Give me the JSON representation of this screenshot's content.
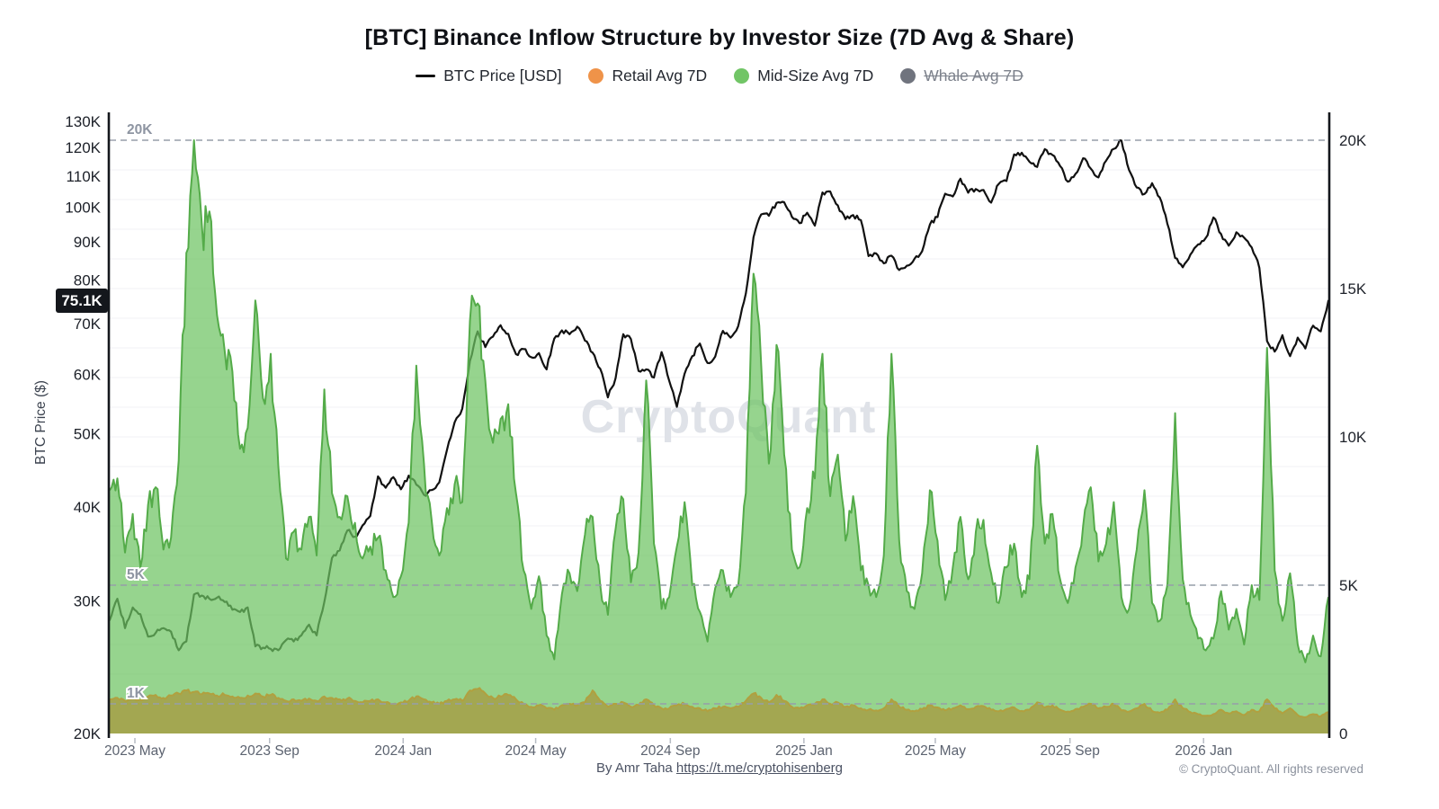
{
  "title": "[BTC] Binance Inflow Structure by Investor Size (7D Avg & Share)",
  "legend": {
    "items": [
      {
        "label": "BTC Price [USD]",
        "color": "#111111",
        "marker": "line",
        "disabled": false
      },
      {
        "label": "Retail Avg 7D",
        "color": "#ef9349",
        "marker": "dot",
        "disabled": false
      },
      {
        "label": "Mid-Size Avg 7D",
        "color": "#71c566",
        "marker": "dot",
        "disabled": false
      },
      {
        "label": "Whale Avg 7D",
        "color": "#70747e",
        "marker": "dot",
        "disabled": true
      }
    ]
  },
  "watermark": "CryptoQuant",
  "price_badge": {
    "label": "75.1K",
    "value": 75.1
  },
  "y_left": {
    "title": "BTC Price ($)",
    "scale": "log",
    "unit": "USD thousands",
    "ticks": [
      {
        "v": 130,
        "label": "130K"
      },
      {
        "v": 120,
        "label": "120K"
      },
      {
        "v": 110,
        "label": "110K"
      },
      {
        "v": 100,
        "label": "100K"
      },
      {
        "v": 90,
        "label": "90K"
      },
      {
        "v": 80,
        "label": "80K"
      },
      {
        "v": 70,
        "label": "70K"
      },
      {
        "v": 60,
        "label": "60K"
      },
      {
        "v": 50,
        "label": "50K"
      },
      {
        "v": 40,
        "label": "40K"
      },
      {
        "v": 30,
        "label": "30K"
      },
      {
        "v": 20,
        "label": "20K"
      }
    ]
  },
  "y_right": {
    "scale": "linear",
    "unit": "BTC thousands",
    "ticks": [
      {
        "v": 20,
        "label": "20K"
      },
      {
        "v": 15,
        "label": "15K"
      },
      {
        "v": 10,
        "label": "10K"
      },
      {
        "v": 5,
        "label": "5K"
      },
      {
        "v": 0,
        "label": "0"
      }
    ],
    "dashed_levels": [
      {
        "v": 20,
        "label": "20K"
      },
      {
        "v": 5,
        "label": "5K"
      },
      {
        "v": 1,
        "label": "1K"
      }
    ]
  },
  "x_axis": {
    "ticks": [
      {
        "label": "2023 May",
        "year": 2023,
        "month": 5
      },
      {
        "label": "2023 Sep",
        "year": 2023,
        "month": 9
      },
      {
        "label": "2024 Jan",
        "year": 2024,
        "month": 1
      },
      {
        "label": "2024 May",
        "year": 2024,
        "month": 5
      },
      {
        "label": "2024 Sep",
        "year": 2024,
        "month": 9
      },
      {
        "label": "2025 Jan",
        "year": 2025,
        "month": 1
      },
      {
        "label": "2025 May",
        "year": 2025,
        "month": 5
      },
      {
        "label": "2025 Sep",
        "year": 2025,
        "month": 9
      },
      {
        "label": "2026 Jan",
        "year": 2026,
        "month": 1
      }
    ]
  },
  "footer": {
    "by_text": "By Amr Taha ",
    "link_text": "https://t.me/cryptohisenberg",
    "copyright": "© CryptoQuant. All rights reserved"
  },
  "chart_data": {
    "type": "mixed",
    "x_start_date": "2023-04-08",
    "x_end_date": "2026-04-25",
    "interval_days": 7,
    "left_axis_range_thousands": [
      20,
      133
    ],
    "right_axis_range_thousands": [
      0,
      20.4
    ],
    "grid": "faint horizontal every 1K on right axis; dashed at 20K, 5K, 1K",
    "legend_position": "top-center",
    "series": [
      {
        "name": "BTC Price [USD]",
        "type": "line",
        "axis": "left",
        "color": "#111111",
        "values": [
          28.3,
          30.2,
          27.6,
          29.4,
          28.8,
          26.9,
          27.2,
          27.6,
          27.3,
          25.8,
          26.5,
          30.6,
          30.5,
          30.2,
          30.3,
          29.9,
          29.2,
          29.0,
          29.4,
          26.1,
          26.0,
          25.9,
          25.8,
          26.6,
          26.5,
          27.0,
          27.9,
          27.0,
          29.9,
          34.2,
          35.0,
          37.2,
          36.5,
          37.8,
          38.9,
          43.9,
          42.4,
          43.8,
          42.2,
          44.0,
          42.8,
          41.5,
          42.1,
          43.1,
          47.6,
          51.8,
          54.0,
          62.5,
          68.4,
          65.2,
          67.3,
          69.7,
          67.9,
          63.8,
          64.8,
          63.2,
          64.0,
          60.9,
          66.9,
          68.6,
          67.8,
          69.4,
          66.5,
          64.1,
          61.0,
          55.9,
          59.3,
          67.8,
          66.8,
          60.6,
          60.9,
          59.4,
          64.2,
          58.8,
          54.3,
          60.1,
          63.4,
          65.9,
          62.1,
          63.3,
          68.5,
          67.1,
          69.5,
          76.8,
          91.2,
          97.8,
          97.4,
          101.3,
          101.5,
          97.1,
          95.2,
          98.3,
          94.5,
          104.6,
          104.9,
          100.5,
          96.4,
          97.6,
          96.1,
          86.1,
          86.8,
          84.2,
          86.2,
          82.5,
          83.6,
          85.4,
          87.4,
          94.8,
          97.0,
          104.2,
          103.3,
          109.1,
          104.5,
          105.7,
          105.4,
          101.4,
          107.4,
          108.3,
          117.5,
          118.1,
          114.9,
          113.1,
          119.4,
          117.3,
          113.4,
          108.1,
          110.7,
          116.1,
          112.5,
          109.5,
          115.3,
          119.5,
          122.6,
          112.0,
          106.2,
          104.1,
          107.6,
          103.0,
          95.0,
          85.6,
          83.2,
          86.5,
          89.2,
          91.0,
          96.9,
          92.1,
          88.9,
          92.6,
          91.1,
          88.4,
          83.0,
          66.4,
          64.3,
          67.6,
          63.4,
          67.1,
          64.9,
          69.6,
          68.4,
          75.1
        ]
      },
      {
        "name": "Mid-Size Avg 7D",
        "type": "area",
        "axis": "right",
        "color": "#71c566",
        "values": [
          8.2,
          8.6,
          6.1,
          7.4,
          5.6,
          7.7,
          8.3,
          6.2,
          6.6,
          9.2,
          16.2,
          20.0,
          17.2,
          17.6,
          14.1,
          12.9,
          12.2,
          9.6,
          10.3,
          14.6,
          11.3,
          12.8,
          9.0,
          5.9,
          6.8,
          6.2,
          7.3,
          6.0,
          11.6,
          8.1,
          7.3,
          8.0,
          7.1,
          5.9,
          6.3,
          6.6,
          5.5,
          4.6,
          5.3,
          7.1,
          12.4,
          9.1,
          7.2,
          6.0,
          7.6,
          8.4,
          7.8,
          13.9,
          14.5,
          11.9,
          9.8,
          10.6,
          11.1,
          8.1,
          5.5,
          4.2,
          5.3,
          3.3,
          2.5,
          4.7,
          5.4,
          4.8,
          6.7,
          7.3,
          5.0,
          4.0,
          6.9,
          7.9,
          5.1,
          6.1,
          11.9,
          6.4,
          4.2,
          4.6,
          6.3,
          7.8,
          5.0,
          4.1,
          3.1,
          4.9,
          5.5,
          4.6,
          5.0,
          8.1,
          15.5,
          12.4,
          9.1,
          13.1,
          9.4,
          6.2,
          5.6,
          7.6,
          8.6,
          12.8,
          8.0,
          9.4,
          6.5,
          8.0,
          5.5,
          5.0,
          4.6,
          6.0,
          12.8,
          6.5,
          4.8,
          4.2,
          5.4,
          8.2,
          6.5,
          4.5,
          5.6,
          7.3,
          5.2,
          6.8,
          7.2,
          5.4,
          4.4,
          5.6,
          6.4,
          4.6,
          5.2,
          9.7,
          6.4,
          7.4,
          5.2,
          4.4,
          5.6,
          7.0,
          8.3,
          5.8,
          6.4,
          7.8,
          4.6,
          4.2,
          6.2,
          8.2,
          4.4,
          3.8,
          5.0,
          10.8,
          5.2,
          4.0,
          3.2,
          2.8,
          3.2,
          4.8,
          3.5,
          4.2,
          3.0,
          5.0,
          4.5,
          13.0,
          5.5,
          3.8,
          5.4,
          3.0,
          2.4,
          3.3,
          2.6,
          4.6
        ]
      },
      {
        "name": "Retail Avg 7D",
        "type": "area",
        "axis": "right",
        "color": "#ef9349",
        "values": [
          1.15,
          1.2,
          1.1,
          1.18,
          1.12,
          1.25,
          1.3,
          1.2,
          1.28,
          1.35,
          1.45,
          1.4,
          1.32,
          1.35,
          1.28,
          1.3,
          1.25,
          1.2,
          1.28,
          1.35,
          1.25,
          1.3,
          1.2,
          1.1,
          1.15,
          1.1,
          1.18,
          1.1,
          1.25,
          1.2,
          1.15,
          1.18,
          1.1,
          1.05,
          1.1,
          1.15,
          1.05,
          1.0,
          1.05,
          1.1,
          1.25,
          1.15,
          1.05,
          1.0,
          1.1,
          1.15,
          1.1,
          1.45,
          1.5,
          1.35,
          1.2,
          1.25,
          1.3,
          1.15,
          1.0,
          0.9,
          0.95,
          0.85,
          0.8,
          0.95,
          1.0,
          0.95,
          1.05,
          1.45,
          1.1,
          0.9,
          1.0,
          1.05,
          0.9,
          0.95,
          1.15,
          0.95,
          0.85,
          0.85,
          0.95,
          1.0,
          0.9,
          0.85,
          0.75,
          0.85,
          0.9,
          0.85,
          0.9,
          1.1,
          1.35,
          1.2,
          1.05,
          1.3,
          1.1,
          0.9,
          0.85,
          0.95,
          1.0,
          1.15,
          1.0,
          1.05,
          0.9,
          0.95,
          0.85,
          0.8,
          0.78,
          0.85,
          1.15,
          0.9,
          0.8,
          0.75,
          0.82,
          0.95,
          0.88,
          0.78,
          0.85,
          0.95,
          0.82,
          0.9,
          0.92,
          0.8,
          0.75,
          0.82,
          0.88,
          0.76,
          0.8,
          1.05,
          0.88,
          0.95,
          0.8,
          0.74,
          0.82,
          0.9,
          1.0,
          0.85,
          0.9,
          1.0,
          0.78,
          0.74,
          0.85,
          1.0,
          0.76,
          0.7,
          0.8,
          1.15,
          0.85,
          0.72,
          0.65,
          0.6,
          0.65,
          0.8,
          0.68,
          0.75,
          0.62,
          0.8,
          0.75,
          1.15,
          0.85,
          0.68,
          0.85,
          0.62,
          0.55,
          0.65,
          0.58,
          0.72
        ]
      },
      {
        "name": "Whale Avg 7D",
        "type": "area",
        "axis": "right",
        "color": "#70747e",
        "disabled": true,
        "values": []
      }
    ]
  },
  "style": {
    "green_fill": "rgba(110,196,99,0.72)",
    "green_stroke": "#54ab49",
    "retail_fill": "#a3a751",
    "retail_stroke": "#b1a03f",
    "dashed_grid_color": "#969da9",
    "faint_grid_color": "#f1f2f5",
    "watermark_color": "#dfe2e8",
    "axis_color": "#14171c",
    "tick_label_color": "#1d2129",
    "x_label_color": "#5c6370"
  }
}
